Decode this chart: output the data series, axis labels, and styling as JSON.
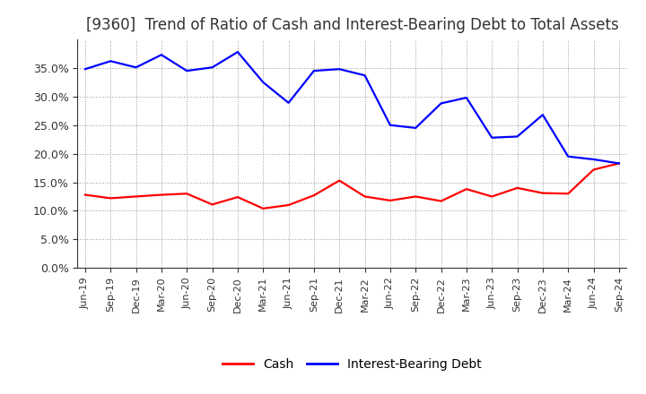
{
  "title": "[9360]  Trend of Ratio of Cash and Interest-Bearing Debt to Total Assets",
  "x_labels": [
    "Jun-19",
    "Sep-19",
    "Dec-19",
    "Mar-20",
    "Jun-20",
    "Sep-20",
    "Dec-20",
    "Mar-21",
    "Jun-21",
    "Sep-21",
    "Dec-21",
    "Mar-22",
    "Jun-22",
    "Sep-22",
    "Dec-22",
    "Mar-23",
    "Jun-23",
    "Sep-23",
    "Dec-23",
    "Mar-24",
    "Jun-24",
    "Sep-24"
  ],
  "cash": [
    12.8,
    12.2,
    12.5,
    12.8,
    13.0,
    11.1,
    12.4,
    10.4,
    11.0,
    12.7,
    15.3,
    12.5,
    11.8,
    12.5,
    11.7,
    13.8,
    12.5,
    14.0,
    13.1,
    13.0,
    17.2,
    18.3
  ],
  "debt": [
    34.8,
    36.2,
    35.1,
    37.3,
    34.5,
    35.1,
    37.8,
    32.5,
    28.9,
    34.5,
    34.8,
    33.7,
    25.0,
    24.5,
    28.8,
    29.8,
    22.8,
    23.0,
    26.8,
    19.5,
    19.0,
    18.3
  ],
  "cash_color": "#FF0000",
  "debt_color": "#0000FF",
  "background_color": "#FFFFFF",
  "grid_color": "#999999",
  "ylim": [
    0,
    40
  ],
  "yticks": [
    0.0,
    5.0,
    10.0,
    15.0,
    20.0,
    25.0,
    30.0,
    35.0
  ],
  "legend_labels": [
    "Cash",
    "Interest-Bearing Debt"
  ],
  "title_fontsize": 12,
  "tick_fontsize": 9,
  "xtick_fontsize": 8
}
